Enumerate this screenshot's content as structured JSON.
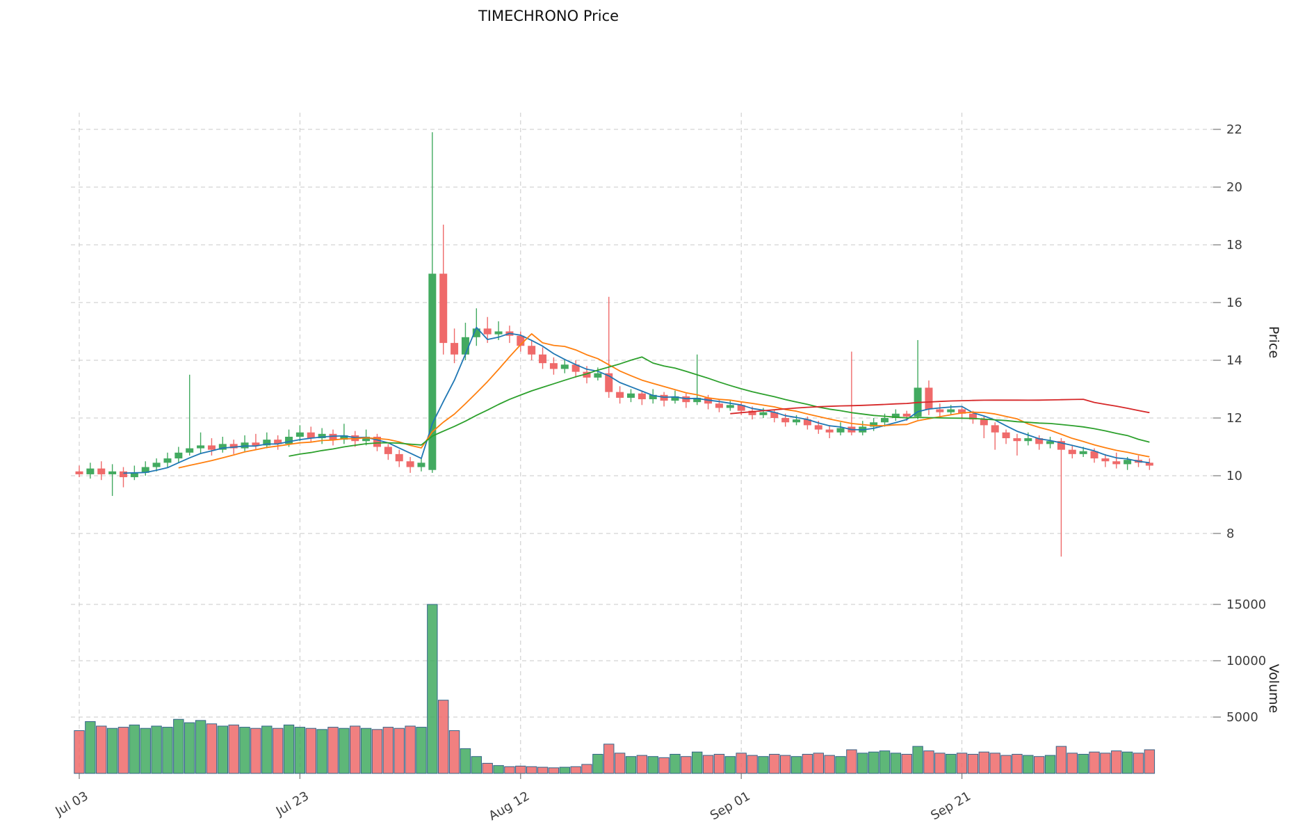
{
  "chart_data": {
    "type": "candlestick",
    "title": "TIMECHRONO Price",
    "ylabel": "Price",
    "ylabel2": "Volume",
    "grid": true,
    "price_ticks": [
      8,
      10,
      12,
      14,
      16,
      18,
      20,
      22
    ],
    "volume_ticks": [
      5000,
      10000,
      15000
    ],
    "x_ticks": [
      {
        "index": 0,
        "label": "Jul 03"
      },
      {
        "index": 20,
        "label": "Jul 23"
      },
      {
        "index": 40,
        "label": "Aug 12"
      },
      {
        "index": 60,
        "label": "Sep 01"
      },
      {
        "index": 80,
        "label": "Sep 21"
      }
    ],
    "moving_averages": [
      5,
      10,
      20,
      60
    ],
    "open": [
      10.15,
      10.05,
      10.25,
      10.05,
      10.15,
      9.95,
      10.1,
      10.3,
      10.45,
      10.6,
      10.8,
      10.95,
      11.05,
      10.9,
      11.1,
      10.95,
      11.15,
      11.05,
      11.25,
      11.1,
      11.35,
      11.5,
      11.3,
      11.45,
      11.25,
      11.4,
      11.2,
      11.35,
      11.0,
      10.75,
      10.5,
      10.3,
      10.2,
      17.0,
      14.6,
      14.2,
      14.8,
      15.1,
      14.9,
      15.0,
      14.85,
      14.5,
      14.2,
      13.9,
      13.7,
      13.85,
      13.6,
      13.4,
      13.55,
      12.9,
      12.7,
      12.85,
      12.65,
      12.8,
      12.6,
      12.75,
      12.55,
      12.7,
      12.5,
      12.35,
      12.45,
      12.25,
      12.1,
      12.2,
      12.0,
      11.85,
      11.95,
      11.75,
      11.6,
      11.5,
      11.7,
      11.5,
      11.7,
      11.85,
      12.0,
      12.15,
      12.05,
      13.05,
      12.3,
      12.2,
      12.3,
      12.15,
      11.95,
      11.75,
      11.5,
      11.3,
      11.2,
      11.3,
      11.1,
      11.2,
      10.9,
      10.75,
      10.85,
      10.6,
      10.5,
      10.4,
      10.55,
      10.45
    ],
    "high": [
      10.35,
      10.45,
      10.5,
      10.4,
      10.3,
      10.35,
      10.5,
      10.6,
      10.8,
      11.0,
      13.5,
      11.5,
      11.3,
      11.35,
      11.25,
      11.4,
      11.45,
      11.5,
      11.4,
      11.6,
      11.75,
      11.7,
      11.65,
      11.6,
      11.8,
      11.55,
      11.6,
      11.45,
      11.1,
      10.9,
      10.65,
      10.6,
      21.9,
      18.7,
      15.1,
      15.3,
      15.8,
      15.5,
      15.35,
      15.2,
      15.0,
      14.7,
      14.45,
      14.1,
      14.05,
      14.0,
      13.8,
      13.75,
      16.2,
      13.1,
      13.0,
      12.95,
      13.0,
      12.9,
      12.95,
      12.85,
      14.2,
      12.8,
      12.65,
      12.6,
      12.55,
      12.4,
      12.35,
      12.3,
      12.15,
      12.1,
      12.05,
      11.9,
      11.75,
      11.85,
      14.3,
      11.9,
      12.0,
      12.15,
      12.3,
      12.25,
      14.7,
      13.3,
      12.5,
      12.45,
      12.4,
      12.25,
      12.05,
      11.85,
      11.6,
      11.45,
      11.5,
      11.4,
      11.35,
      11.3,
      11.05,
      11.0,
      10.95,
      10.75,
      10.8,
      10.65,
      10.7,
      10.6
    ],
    "low": [
      9.95,
      9.9,
      9.85,
      9.3,
      9.6,
      9.85,
      10.0,
      10.15,
      10.3,
      10.45,
      10.7,
      10.75,
      10.7,
      10.8,
      10.75,
      10.85,
      10.9,
      10.95,
      10.9,
      11.0,
      11.2,
      11.15,
      11.1,
      11.05,
      11.1,
      11.0,
      11.05,
      10.85,
      10.55,
      10.3,
      10.1,
      10.15,
      10.1,
      14.2,
      13.9,
      14.0,
      14.5,
      14.6,
      14.7,
      14.6,
      14.3,
      14.0,
      13.7,
      13.5,
      13.55,
      13.4,
      13.2,
      13.3,
      12.7,
      12.5,
      12.55,
      12.45,
      12.5,
      12.4,
      12.5,
      12.35,
      12.45,
      12.3,
      12.2,
      12.25,
      12.1,
      11.95,
      12.0,
      11.85,
      11.7,
      11.75,
      11.6,
      11.45,
      11.3,
      11.4,
      11.4,
      11.4,
      11.55,
      11.7,
      11.9,
      11.9,
      11.95,
      12.1,
      12.05,
      12.1,
      12.0,
      11.8,
      11.3,
      10.9,
      11.1,
      10.7,
      11.05,
      10.9,
      10.95,
      7.2,
      10.6,
      10.65,
      10.45,
      10.3,
      10.25,
      10.2,
      10.3,
      10.2
    ],
    "close": [
      10.05,
      10.25,
      10.05,
      10.15,
      9.95,
      10.1,
      10.3,
      10.45,
      10.6,
      10.8,
      10.95,
      11.05,
      10.9,
      11.1,
      10.95,
      11.15,
      11.05,
      11.25,
      11.1,
      11.35,
      11.5,
      11.3,
      11.45,
      11.25,
      11.4,
      11.2,
      11.35,
      11.0,
      10.75,
      10.5,
      10.3,
      10.45,
      17.0,
      14.6,
      14.2,
      14.8,
      15.1,
      14.9,
      15.0,
      14.85,
      14.5,
      14.2,
      13.9,
      13.7,
      13.85,
      13.6,
      13.4,
      13.55,
      12.9,
      12.7,
      12.85,
      12.65,
      12.8,
      12.6,
      12.75,
      12.55,
      12.7,
      12.5,
      12.35,
      12.45,
      12.25,
      12.1,
      12.2,
      12.0,
      11.85,
      11.95,
      11.75,
      11.6,
      11.5,
      11.65,
      11.5,
      11.7,
      11.85,
      12.0,
      12.15,
      12.05,
      13.05,
      12.3,
      12.2,
      12.3,
      12.15,
      11.95,
      11.75,
      11.5,
      11.3,
      11.2,
      11.3,
      11.1,
      11.2,
      10.9,
      10.75,
      10.85,
      10.6,
      10.5,
      10.4,
      10.55,
      10.45,
      10.35
    ],
    "volume": [
      3800,
      4600,
      4200,
      4000,
      4100,
      4300,
      4000,
      4200,
      4100,
      4800,
      4500,
      4700,
      4400,
      4200,
      4300,
      4100,
      4000,
      4200,
      4000,
      4300,
      4100,
      4000,
      3900,
      4100,
      4000,
      4200,
      4000,
      3900,
      4100,
      4000,
      4200,
      4100,
      15000,
      6500,
      3800,
      2200,
      1500,
      900,
      700,
      600,
      650,
      600,
      550,
      500,
      550,
      600,
      800,
      1700,
      2600,
      1800,
      1500,
      1600,
      1500,
      1400,
      1700,
      1500,
      1900,
      1600,
      1700,
      1500,
      1800,
      1600,
      1500,
      1700,
      1600,
      1500,
      1700,
      1800,
      1600,
      1500,
      2100,
      1800,
      1900,
      2000,
      1800,
      1700,
      2400,
      2000,
      1800,
      1700,
      1800,
      1700,
      1900,
      1800,
      1600,
      1700,
      1600,
      1500,
      1600,
      2400,
      1800,
      1700,
      1900,
      1800,
      2000,
      1900,
      1800,
      2100
    ]
  },
  "colors": {
    "up": "#42aa60",
    "down": "#ef6a6a",
    "volume_edge": "#33658a",
    "grid": "#c9c9c9",
    "ma_short": "#1f77b4",
    "ma_mid": "#ff7f0e",
    "ma_long": "#2ca02c",
    "ma_xlong": "#d62728"
  }
}
